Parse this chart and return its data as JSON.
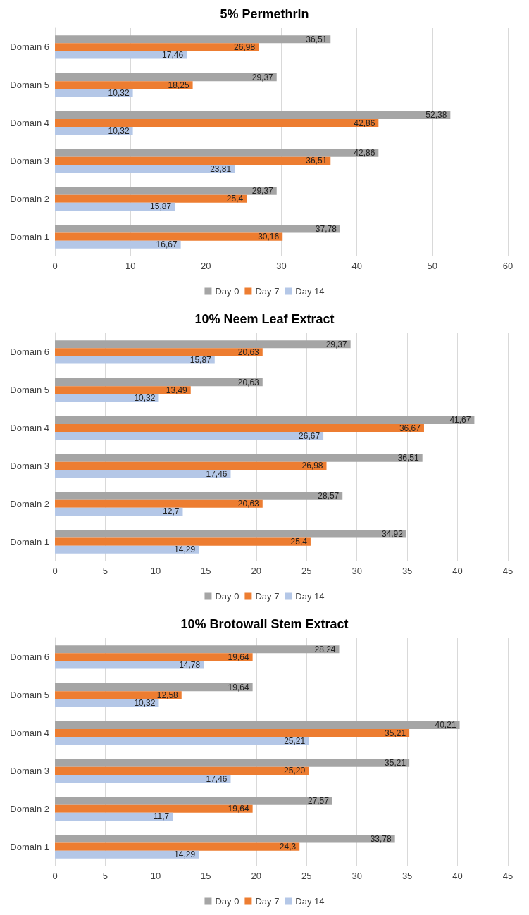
{
  "chart_data": [
    {
      "type": "bar",
      "orientation": "horizontal",
      "title": "5% Permethrin",
      "categories": [
        "Domain 6",
        "Domain 5",
        "Domain 4",
        "Domain 3",
        "Domain 2",
        "Domain 1"
      ],
      "xlim": [
        0,
        60
      ],
      "xticks": [
        0,
        10,
        20,
        30,
        40,
        50,
        60
      ],
      "grid": "x",
      "legend": "bottom",
      "series": [
        {
          "name": "Day 0",
          "color": "#a5a5a5",
          "values": [
            36.51,
            29.37,
            52.38,
            42.86,
            29.37,
            37.78
          ],
          "value_labels": [
            "36,51",
            "29,37",
            "52,38",
            "42,86",
            "29,37",
            "37,78"
          ]
        },
        {
          "name": "Day 7",
          "color": "#ed7d31",
          "values": [
            26.98,
            18.25,
            42.86,
            36.51,
            25.4,
            30.16
          ],
          "value_labels": [
            "26,98",
            "18,25",
            "42,86",
            "36,51",
            "25,4",
            "30,16"
          ]
        },
        {
          "name": "Day 14",
          "color": "#b4c7e7",
          "values": [
            17.46,
            10.32,
            10.32,
            23.81,
            15.87,
            16.67
          ],
          "value_labels": [
            "17,46",
            "10,32",
            "10,32",
            "23,81",
            "15,87",
            "16,67"
          ]
        }
      ]
    },
    {
      "type": "bar",
      "orientation": "horizontal",
      "title": "10% Neem Leaf Extract",
      "categories": [
        "Domain 6",
        "Domain 5",
        "Domain 4",
        "Domain 3",
        "Domain 2",
        "Domain 1"
      ],
      "xlim": [
        0,
        45
      ],
      "xticks": [
        0,
        5,
        10,
        15,
        20,
        25,
        30,
        35,
        40,
        45
      ],
      "grid": "x",
      "legend": "bottom",
      "series": [
        {
          "name": "Day 0",
          "color": "#a5a5a5",
          "values": [
            29.37,
            20.63,
            41.67,
            36.51,
            28.57,
            34.92
          ],
          "value_labels": [
            "29,37",
            "20,63",
            "41,67",
            "36,51",
            "28,57",
            "34,92"
          ]
        },
        {
          "name": "Day 7",
          "color": "#ed7d31",
          "values": [
            20.63,
            13.49,
            36.67,
            26.98,
            20.63,
            25.4
          ],
          "value_labels": [
            "20,63",
            "13,49",
            "36,67",
            "26,98",
            "20,63",
            "25,4"
          ]
        },
        {
          "name": "Day 14",
          "color": "#b4c7e7",
          "values": [
            15.87,
            10.32,
            26.67,
            17.46,
            12.7,
            14.29
          ],
          "value_labels": [
            "15,87",
            "10,32",
            "26,67",
            "17,46",
            "12,7",
            "14,29"
          ]
        }
      ]
    },
    {
      "type": "bar",
      "orientation": "horizontal",
      "title": "10% Brotowali Stem Extract",
      "categories": [
        "Domain 6",
        "Domain 5",
        "Domain 4",
        "Domain 3",
        "Domain 2",
        "Domain 1"
      ],
      "xlim": [
        0,
        45
      ],
      "xticks": [
        0,
        5,
        10,
        15,
        20,
        25,
        30,
        35,
        40,
        45
      ],
      "grid": "x",
      "legend": "bottom",
      "series": [
        {
          "name": "Day 0",
          "color": "#a5a5a5",
          "values": [
            28.24,
            19.64,
            40.21,
            35.21,
            27.57,
            33.78
          ],
          "value_labels": [
            "28,24",
            "19,64",
            "40,21",
            "35,21",
            "27,57",
            "33,78"
          ]
        },
        {
          "name": "Day 7",
          "color": "#ed7d31",
          "values": [
            19.64,
            12.58,
            35.21,
            25.2,
            19.64,
            24.3
          ],
          "value_labels": [
            "19,64",
            "12,58",
            "35,21",
            "25,20",
            "19,64",
            "24,3"
          ]
        },
        {
          "name": "Day 14",
          "color": "#b4c7e7",
          "values": [
            14.78,
            10.32,
            25.21,
            17.46,
            11.7,
            14.29
          ],
          "value_labels": [
            "14,78",
            "10,32",
            "25,21",
            "17,46",
            "11,7",
            "14,29"
          ]
        }
      ]
    }
  ]
}
